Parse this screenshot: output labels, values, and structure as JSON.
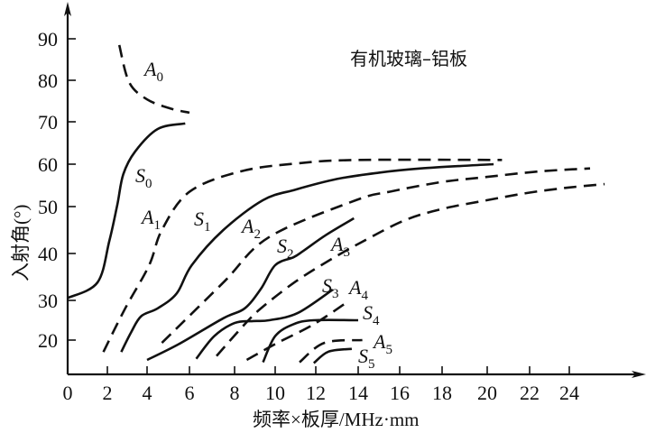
{
  "chart_data": {
    "type": "line",
    "title": "有机玻璃–铝板",
    "xlabel": "频率×板厚/MHz·mm",
    "ylabel": "入射角(°)",
    "xlim": [
      0,
      27
    ],
    "ylim": [
      11.5,
      95
    ],
    "x_ticks": [
      "0",
      "2",
      "4",
      "6",
      "8",
      "10",
      "12",
      "14",
      "16",
      "18",
      "20",
      "22",
      "24"
    ],
    "y_ticks": [
      "90",
      "80",
      "70",
      "60",
      "50",
      "40",
      "30",
      "20"
    ],
    "grid": false,
    "series": [
      {
        "name": "A",
        "sub": "0",
        "style": "dashed",
        "points": [
          [
            2.6,
            88.5
          ],
          [
            3.1,
            79.5
          ],
          [
            4.0,
            75.4
          ],
          [
            5.1,
            73.2
          ],
          [
            6.0,
            72.2
          ]
        ]
      },
      {
        "name": "S",
        "sub": "0",
        "style": "solid",
        "points": [
          [
            0,
            30.5
          ],
          [
            1.5,
            33.8
          ],
          [
            2.1,
            42.7
          ],
          [
            2.5,
            50.4
          ],
          [
            2.8,
            57.6
          ],
          [
            3.4,
            63
          ],
          [
            4.5,
            68.3
          ],
          [
            5.8,
            69.6
          ]
        ]
      },
      {
        "name": "A",
        "sub": "1",
        "style": "dashed",
        "points": [
          [
            1.8,
            17
          ],
          [
            2.9,
            28
          ],
          [
            4.1,
            37.5
          ],
          [
            4.7,
            45
          ],
          [
            6.0,
            53.5
          ],
          [
            8.3,
            58.3
          ],
          [
            11.1,
            60.2
          ],
          [
            14,
            61
          ],
          [
            20.7,
            61
          ]
        ]
      },
      {
        "name": "S",
        "sub": "1",
        "style": "solid",
        "points": [
          [
            2.7,
            17
          ],
          [
            3.2,
            22
          ],
          [
            3.7,
            26
          ],
          [
            4.5,
            28
          ],
          [
            5.4,
            31.5
          ],
          [
            6.1,
            37.5
          ],
          [
            7.5,
            45
          ],
          [
            9.4,
            51.5
          ],
          [
            11,
            54
          ],
          [
            13,
            56.5
          ],
          [
            15,
            58
          ],
          [
            17,
            59
          ],
          [
            20.3,
            60
          ]
        ]
      },
      {
        "name": "A",
        "sub": "2",
        "style": "dashed",
        "points": [
          [
            4.7,
            19.3
          ],
          [
            7.5,
            33.8
          ],
          [
            9.7,
            43.5
          ],
          [
            13.9,
            51.5
          ],
          [
            15.5,
            53.5
          ],
          [
            18,
            55.8
          ],
          [
            20,
            57
          ],
          [
            22.5,
            58.3
          ],
          [
            25,
            59
          ]
        ]
      },
      {
        "name": "S",
        "sub": "2",
        "style": "solid",
        "points": [
          [
            4.0,
            15
          ],
          [
            5.5,
            19
          ],
          [
            7.5,
            25.5
          ],
          [
            8.5,
            28
          ],
          [
            9.3,
            32.5
          ],
          [
            10,
            37.5
          ],
          [
            10.9,
            39.2
          ],
          [
            11.4,
            40.6
          ],
          [
            12.5,
            44
          ],
          [
            13.8,
            47.5
          ]
        ]
      },
      {
        "name": "A",
        "sub": "3",
        "style": "dashed",
        "points": [
          [
            7.2,
            16
          ],
          [
            8.5,
            24
          ],
          [
            9.3,
            28
          ],
          [
            11,
            34
          ],
          [
            12.7,
            38.7
          ],
          [
            14.2,
            42.5
          ],
          [
            16.2,
            47
          ],
          [
            18,
            49.5
          ],
          [
            20,
            51.5
          ],
          [
            22,
            53.3
          ],
          [
            24,
            54.5
          ],
          [
            25.7,
            55.3
          ]
        ]
      },
      {
        "name": "S",
        "sub": "3",
        "style": "solid",
        "points": [
          [
            6.3,
            15.3
          ],
          [
            7.1,
            21
          ],
          [
            8.0,
            24.3
          ],
          [
            8.9,
            24.8
          ],
          [
            9.7,
            25
          ],
          [
            11.1,
            26.8
          ],
          [
            12.8,
            32.3
          ]
        ]
      },
      {
        "name": "A",
        "sub": "4",
        "style": "dashed",
        "points": [
          [
            8.6,
            15
          ],
          [
            10,
            19
          ],
          [
            11.9,
            24
          ],
          [
            13.6,
            30
          ]
        ]
      },
      {
        "name": "S",
        "sub": "4",
        "style": "solid",
        "points": [
          [
            9.4,
            14.4
          ],
          [
            10.0,
            21
          ],
          [
            10.9,
            24
          ],
          [
            11.9,
            25
          ],
          [
            14.0,
            25
          ]
        ]
      },
      {
        "name": "A",
        "sub": "5",
        "style": "dashed",
        "points": [
          [
            11.2,
            14.4
          ],
          [
            12.4,
            19.3
          ],
          [
            14.2,
            20
          ]
        ]
      },
      {
        "name": "S",
        "sub": "5",
        "style": "solid",
        "points": [
          [
            11.9,
            14.2
          ],
          [
            12.6,
            17.1
          ],
          [
            13.7,
            17.8
          ]
        ]
      }
    ]
  }
}
